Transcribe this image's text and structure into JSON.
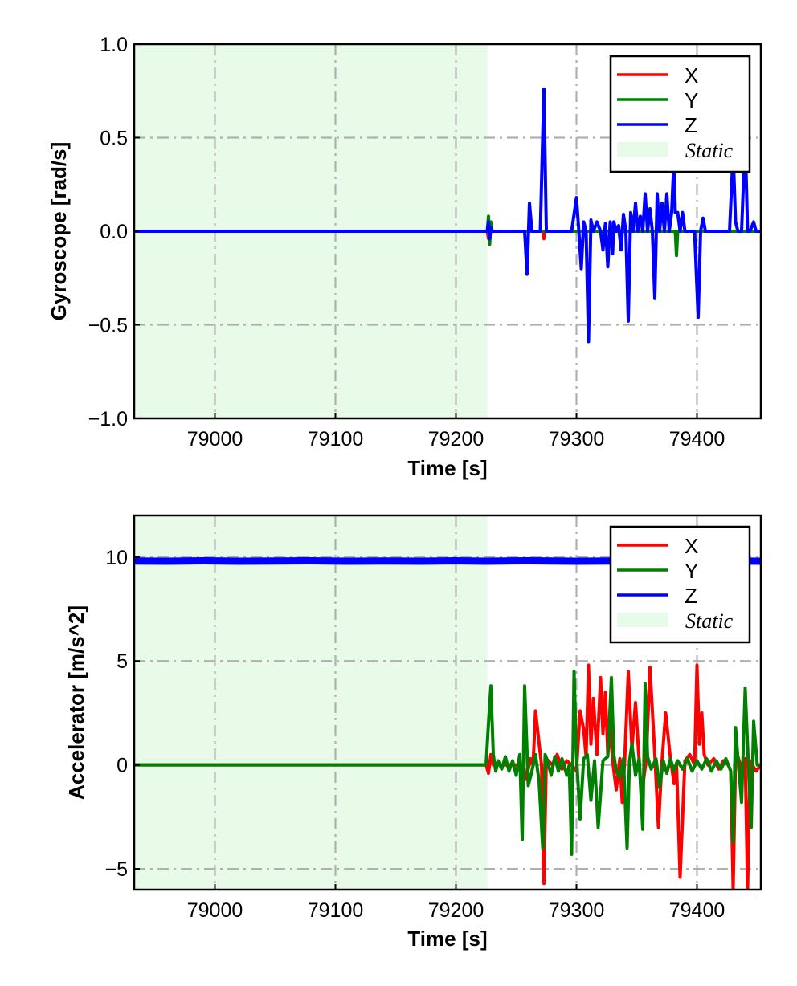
{
  "colors": {
    "X": "#ff0000",
    "Y": "#008000",
    "Z": "#0000ff",
    "static": "#e8fbe8",
    "grid": "#b0b0b0"
  },
  "chart_data": [
    {
      "type": "line",
      "xlabel": "Time [s]",
      "ylabel": "Gyroscope [rad/s]",
      "xlim": [
        78933,
        79453
      ],
      "ylim": [
        -1.0,
        1.0
      ],
      "xticks": [
        79000,
        79100,
        79200,
        79300,
        79400
      ],
      "xtick_labels": [
        "79000",
        "79100",
        "79200",
        "79300",
        "79400"
      ],
      "yticks": [
        -1.0,
        -0.5,
        0.0,
        0.5,
        1.0
      ],
      "ytick_labels": [
        "−1.0",
        "−0.5",
        "0.0",
        "0.5",
        "1.0"
      ],
      "grid": true,
      "legend_position": "top-right",
      "static_span": [
        78933,
        79226
      ],
      "legend": {
        "X": "X",
        "Y": "Y",
        "Z": "Z",
        "static": "Static"
      },
      "series": [
        {
          "name": "X",
          "x": [
            78933,
            79226,
            79227,
            79228,
            79229,
            79272,
            79273,
            79274,
            79453
          ],
          "y": [
            0,
            0,
            -0.04,
            0.03,
            0,
            0,
            -0.04,
            0,
            0
          ]
        },
        {
          "name": "Y",
          "x": [
            78933,
            79226,
            79227,
            79228,
            79229,
            79230,
            79382,
            79383,
            79384,
            79453
          ],
          "y": [
            0,
            0,
            0.08,
            -0.07,
            0.05,
            0,
            0,
            -0.13,
            0,
            0
          ]
        },
        {
          "name": "Z",
          "x": [
            78933,
            79226,
            79227,
            79228,
            79229,
            79230,
            79257,
            79259,
            79261,
            79263,
            79270,
            79273,
            79275,
            79296,
            79300,
            79302,
            79304,
            79306,
            79308,
            79310,
            79312,
            79314,
            79317,
            79320,
            79322,
            79324,
            79326,
            79328,
            79330,
            79331,
            79333,
            79335,
            79337,
            79339,
            79341,
            79343,
            79345,
            79347,
            79349,
            79351,
            79353,
            79355,
            79357,
            79359,
            79361,
            79363,
            79365,
            79367,
            79369,
            79371,
            79373,
            79375,
            79377,
            79379,
            79380,
            79381,
            79382,
            79384,
            79386,
            79388,
            79390,
            79398,
            79401,
            79403,
            79405,
            79407,
            79410,
            79427,
            79430,
            79432,
            79434,
            79437,
            79440,
            79442,
            79444,
            79447,
            79449,
            79453
          ],
          "y": [
            0,
            0,
            0.05,
            -0.04,
            0.02,
            0,
            0,
            -0.23,
            0.15,
            0,
            0,
            0.76,
            0,
            0,
            0.18,
            0,
            -0.2,
            0.05,
            0,
            -0.59,
            0.06,
            0,
            0.05,
            0,
            -0.1,
            0.04,
            -0.19,
            0.05,
            -0.12,
            0.05,
            0,
            0.03,
            -0.1,
            0.09,
            0,
            -0.48,
            0.1,
            0,
            0.15,
            0,
            0.08,
            0,
            0.2,
            0,
            0.12,
            0,
            -0.36,
            0.2,
            0,
            0.15,
            0,
            0.2,
            0,
            0.1,
            0.25,
            0.38,
            0.1,
            0.1,
            0,
            0.1,
            0,
            0,
            -0.46,
            0,
            0.07,
            0,
            0,
            0,
            0.42,
            0.05,
            0,
            0,
            0.5,
            0,
            0,
            0.05,
            0,
            0
          ]
        }
      ]
    },
    {
      "type": "line",
      "xlabel": "Time [s]",
      "ylabel": "Accelerator [m/s^2]",
      "xlim": [
        78933,
        79453
      ],
      "ylim": [
        -6,
        12
      ],
      "xticks": [
        79000,
        79100,
        79200,
        79300,
        79400
      ],
      "xtick_labels": [
        "79000",
        "79100",
        "79200",
        "79300",
        "79400"
      ],
      "yticks": [
        -5,
        0,
        5,
        10
      ],
      "ytick_labels": [
        "−5",
        "0",
        "5",
        "10"
      ],
      "grid": true,
      "legend_position": "top-right",
      "static_span": [
        78933,
        79226
      ],
      "legend": {
        "X": "X",
        "Y": "Y",
        "Z": "Z",
        "static": "Static"
      },
      "series": [
        {
          "name": "X",
          "x": [
            78933,
            79225,
            79227,
            79229,
            79231,
            79256,
            79258,
            79262,
            79264,
            79266,
            79271,
            79273,
            79275,
            79280,
            79284,
            79288,
            79292,
            79296,
            79300,
            79303,
            79306,
            79308,
            79310,
            79312,
            79314,
            79317,
            79320,
            79322,
            79324,
            79326,
            79328,
            79330,
            79333,
            79336,
            79338,
            79340,
            79343,
            79346,
            79349,
            79352,
            79354,
            79358,
            79361,
            79365,
            79368,
            79371,
            79374,
            79378,
            79381,
            79383,
            79386,
            79390,
            79394,
            79398,
            79400,
            79402,
            79404,
            79406,
            79409,
            79414,
            79418,
            79422,
            79426,
            79428,
            79430,
            79432,
            79434,
            79436,
            79438,
            79440,
            79442,
            79444,
            79446,
            79449,
            79453
          ],
          "y": [
            0,
            0,
            -0.4,
            0.5,
            0,
            0,
            -0.7,
            0.3,
            0,
            2.6,
            0,
            -5.7,
            0.3,
            0,
            0.5,
            -0.2,
            0.2,
            0,
            -0.3,
            2.6,
            1.7,
            0.4,
            4.8,
            1.0,
            3.2,
            0.5,
            4.2,
            1.5,
            3.5,
            0.5,
            1.8,
            0.2,
            -1.2,
            0.3,
            -1.8,
            0.2,
            4.5,
            0.8,
            3.0,
            0.2,
            -1.5,
            0.3,
            4.7,
            0.5,
            -3.0,
            0.2,
            2.5,
            0.3,
            -0.9,
            0.1,
            -5.4,
            0.2,
            0.5,
            0,
            4.8,
            1.0,
            2.5,
            0.5,
            0,
            0.3,
            -0.2,
            0.2,
            0,
            -0.3,
            -6.0,
            0.3,
            0.4,
            0,
            -0.5,
            0.3,
            -6.0,
            0.2,
            0,
            -0.3,
            0
          ]
        },
        {
          "name": "Y",
          "x": [
            78933,
            79225,
            79227,
            79229,
            79231,
            79233,
            79235,
            79238,
            79241,
            79244,
            79247,
            79250,
            79253,
            79255,
            79257,
            79260,
            79263,
            79266,
            79269,
            79272,
            79274,
            79276,
            79279,
            79282,
            79285,
            79288,
            79292,
            79294,
            79296,
            79298,
            79300,
            79303,
            79306,
            79309,
            79312,
            79315,
            79318,
            79322,
            79326,
            79329,
            79331,
            79333,
            79336,
            79339,
            79342,
            79344,
            79346,
            79349,
            79352,
            79355,
            79357,
            79359,
            79362,
            79366,
            79369,
            79372,
            79375,
            79378,
            79381,
            79384,
            79388,
            79392,
            79396,
            79400,
            79404,
            79408,
            79412,
            79416,
            79420,
            79424,
            79428,
            79430,
            79432,
            79434,
            79437,
            79440,
            79443,
            79445,
            79447,
            79450,
            79453
          ],
          "y": [
            0,
            0,
            2.0,
            3.8,
            0.5,
            -0.3,
            0.2,
            -0.2,
            0.4,
            -0.3,
            0.2,
            -0.5,
            0.5,
            -3.6,
            3.8,
            -1.0,
            -0.3,
            0.5,
            -0.8,
            -4.0,
            0.5,
            0.2,
            -0.5,
            0.4,
            -0.3,
            0.3,
            -0.5,
            0,
            -4.3,
            4.5,
            0.5,
            -2.6,
            0.3,
            0.5,
            -1.7,
            0.2,
            -3.0,
            0.2,
            0.4,
            4.2,
            0.5,
            -0.3,
            -0.6,
            0.3,
            -4.0,
            0.2,
            1.0,
            -0.5,
            0.3,
            -3.1,
            3.9,
            0.4,
            -0.2,
            0.3,
            -1.1,
            0.2,
            -0.4,
            0.3,
            -0.3,
            0.2,
            -0.2,
            0.3,
            -0.3,
            0.2,
            -0.2,
            0.3,
            -0.3,
            0.2,
            -0.2,
            0.3,
            -0.3,
            -3.7,
            1.8,
            0.3,
            -1.8,
            3.7,
            -0.5,
            -3.0,
            2.1,
            0,
            0
          ]
        },
        {
          "name": "Z",
          "x": [
            78933,
            78960,
            78990,
            79020,
            79050,
            79080,
            79110,
            79140,
            79170,
            79200,
            79225,
            79260,
            79300,
            79340,
            79380,
            79420,
            79453
          ],
          "y": [
            9.81,
            9.8,
            9.82,
            9.8,
            9.81,
            9.82,
            9.8,
            9.81,
            9.8,
            9.82,
            9.8,
            9.82,
            9.8,
            9.81,
            9.79,
            9.82,
            9.8
          ]
        }
      ]
    }
  ]
}
